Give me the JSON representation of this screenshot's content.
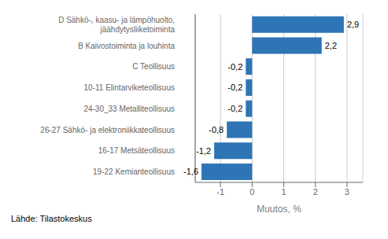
{
  "chart_data": {
    "type": "bar",
    "orientation": "horizontal",
    "categories": [
      "19-22 Kemianteollisuus",
      "16-17 Metsäteollisuus",
      "26-27 Sähkö- ja elektroniikkateollisuus",
      "24-30_33 Metalliteollisuus",
      "10-11 Elintarviketeollisuus",
      "C Teollisuus",
      "B Kaivostoiminta ja louhinta",
      "D Sähkö-, kaasu- ja lämpöhuolto,\njäähdytysliiketoiminta"
    ],
    "values": [
      -1.6,
      -1.2,
      -0.8,
      -0.2,
      -0.2,
      -0.2,
      2.2,
      2.9
    ],
    "value_labels": [
      "-1,6",
      "-1,2",
      "-0,8",
      "-0,2",
      "-0,2",
      "-0,2",
      "2,2",
      "2,9"
    ],
    "data_labels": true,
    "color": "#2e75b6",
    "xlim": [
      -1.8,
      3.5
    ],
    "xticks": [
      -1,
      0,
      1,
      2,
      3
    ],
    "xlabel": "Muutos, %",
    "grid": true,
    "annotations": [
      "Lähde: Tilastokeskus"
    ]
  }
}
